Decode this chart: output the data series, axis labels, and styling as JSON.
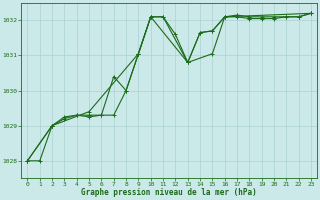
{
  "background_color": "#cce9e9",
  "grid_color": "#aad0d0",
  "line_color": "#1a6b1a",
  "title": "Graphe pression niveau de la mer (hPa)",
  "xlim": [
    -0.5,
    23.5
  ],
  "ylim": [
    1027.5,
    1032.5
  ],
  "yticks": [
    1028,
    1029,
    1030,
    1031,
    1032
  ],
  "xticks": [
    0,
    1,
    2,
    3,
    4,
    5,
    6,
    7,
    8,
    9,
    10,
    11,
    12,
    13,
    14,
    15,
    16,
    17,
    18,
    19,
    20,
    21,
    22,
    23
  ],
  "series1": [
    [
      0,
      1028.0
    ],
    [
      1,
      1028.0
    ],
    [
      2,
      1029.0
    ],
    [
      3,
      1029.2
    ],
    [
      4,
      1029.3
    ],
    [
      5,
      1029.25
    ],
    [
      6,
      1029.3
    ],
    [
      7,
      1030.4
    ],
    [
      8,
      1030.0
    ],
    [
      9,
      1031.05
    ],
    [
      10,
      1032.1
    ],
    [
      11,
      1032.1
    ],
    [
      12,
      1031.6
    ],
    [
      13,
      1030.8
    ],
    [
      14,
      1031.65
    ],
    [
      15,
      1031.7
    ],
    [
      16,
      1032.1
    ],
    [
      17,
      1032.15
    ],
    [
      18,
      1032.1
    ],
    [
      19,
      1032.1
    ],
    [
      20,
      1032.1
    ],
    [
      21,
      1032.1
    ],
    [
      22,
      1032.1
    ],
    [
      23,
      1032.2
    ]
  ],
  "series2": [
    [
      0,
      1028.0
    ],
    [
      2,
      1029.0
    ],
    [
      3,
      1029.25
    ],
    [
      4,
      1029.3
    ],
    [
      5,
      1029.3
    ],
    [
      6,
      1029.3
    ],
    [
      7,
      1029.3
    ],
    [
      8,
      1030.0
    ],
    [
      9,
      1031.05
    ],
    [
      10,
      1032.1
    ],
    [
      11,
      1032.1
    ],
    [
      13,
      1030.8
    ],
    [
      14,
      1031.65
    ],
    [
      15,
      1031.7
    ],
    [
      16,
      1032.1
    ],
    [
      17,
      1032.1
    ],
    [
      18,
      1032.05
    ],
    [
      19,
      1032.05
    ],
    [
      20,
      1032.05
    ],
    [
      21,
      1032.1
    ],
    [
      22,
      1032.1
    ],
    [
      23,
      1032.2
    ]
  ],
  "series3": [
    [
      0,
      1028.0
    ],
    [
      2,
      1029.0
    ],
    [
      5,
      1029.4
    ],
    [
      9,
      1031.05
    ],
    [
      10,
      1032.1
    ],
    [
      13,
      1030.8
    ],
    [
      15,
      1031.05
    ],
    [
      16,
      1032.1
    ],
    [
      23,
      1032.2
    ]
  ]
}
